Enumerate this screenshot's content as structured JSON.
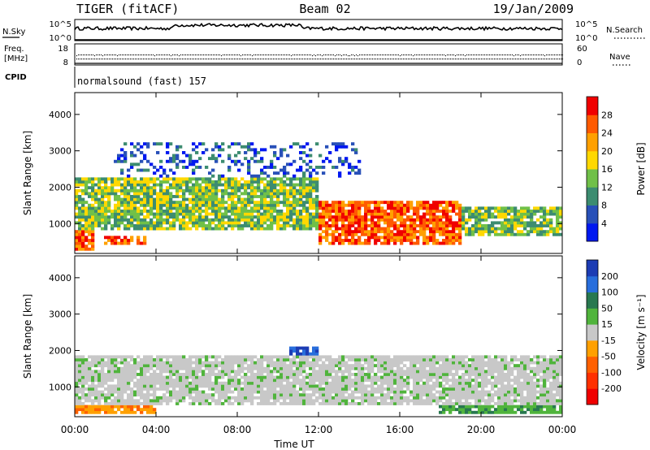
{
  "header": {
    "radar": "TIGER (fitACF)",
    "beam": "Beam 02",
    "date": "19/Jan/2009"
  },
  "top_panels": {
    "noise": {
      "left_label": "N.Sky",
      "left_ticks": [
        "10^5",
        "10^0"
      ],
      "right_label": "N.Search",
      "right_ticks": [
        "10^5",
        "10^0"
      ]
    },
    "freq": {
      "left_label_1": "Freq.",
      "left_label_2": "[MHz]",
      "left_ticks": [
        "18",
        "8"
      ],
      "right_label": "Nave",
      "right_ticks": [
        "60",
        "0"
      ]
    },
    "cpid": {
      "label": "CPID",
      "text": "normalsound (fast) 157"
    }
  },
  "chart_data": [
    {
      "type": "heatmap",
      "panel": "power",
      "xlabel": "Time UT",
      "ylabel": "Slant Range [km]",
      "x_ticks": [
        "00:00",
        "04:00",
        "08:00",
        "12:00",
        "16:00",
        "20:00",
        "00:00"
      ],
      "y_ticks": [
        1000,
        2000,
        3000,
        4000
      ],
      "xlim_hours": [
        0,
        24
      ],
      "ylim_km": [
        180,
        4600
      ],
      "colorbar_label": "Power [dB]",
      "colorbar_ticks": [
        4,
        8,
        12,
        16,
        20,
        24,
        28
      ],
      "colorbar_range": [
        0,
        32
      ],
      "colors": [
        "#0018f0",
        "#2850b8",
        "#3c8c70",
        "#70c048",
        "#ffd800",
        "#ffa000",
        "#ff5a00",
        "#f00000"
      ],
      "echo_regions": [
        {
          "t0": 0.0,
          "t1": 1.0,
          "r0": 300,
          "r1": 800,
          "level": "high"
        },
        {
          "t0": 1.5,
          "t1": 3.5,
          "r0": 400,
          "r1": 700,
          "level": "high"
        },
        {
          "t0": 12.0,
          "t1": 19.0,
          "r0": 400,
          "r1": 1600,
          "level": "high"
        },
        {
          "t0": 0.0,
          "t1": 12.0,
          "r0": 800,
          "r1": 2300,
          "level": "medium"
        },
        {
          "t0": 19.0,
          "t1": 24.0,
          "r0": 700,
          "r1": 1500,
          "level": "medium"
        },
        {
          "t0": 2.0,
          "t1": 14.0,
          "r0": 2300,
          "r1": 3200,
          "level": "low"
        }
      ]
    },
    {
      "type": "heatmap",
      "panel": "velocity",
      "xlabel": "Time UT",
      "ylabel": "Slant Range [km]",
      "x_ticks": [
        "00:00",
        "04:00",
        "08:00",
        "12:00",
        "16:00",
        "20:00",
        "00:00"
      ],
      "y_ticks": [
        1000,
        2000,
        3000,
        4000
      ],
      "xlim_hours": [
        0,
        24
      ],
      "ylim_km": [
        180,
        4600
      ],
      "colorbar_label": "Velocity [m s⁻¹]",
      "colorbar_ticks": [
        200,
        100,
        50,
        15,
        -15,
        -50,
        -100,
        -200
      ],
      "colors": [
        "#1c3cb4",
        "#286edc",
        "#287850",
        "#50b43c",
        "#c8c8c8",
        "#ffa000",
        "#ff6000",
        "#ff3000",
        "#f00000"
      ],
      "echo_regions": [
        {
          "t0": 0.0,
          "t1": 24.0,
          "r0": 500,
          "r1": 1900,
          "velocity": "ground scatter"
        },
        {
          "t0": 0.0,
          "t1": 4.0,
          "r0": 250,
          "r1": 600,
          "velocity": -50
        },
        {
          "t0": 10.8,
          "t1": 12.0,
          "r0": 1100,
          "r1": 1500,
          "velocity": -100
        },
        {
          "t0": 10.5,
          "t1": 12.0,
          "r0": 1500,
          "r1": 2100,
          "velocity": 200
        },
        {
          "t0": 18.0,
          "t1": 24.0,
          "r0": 250,
          "r1": 700,
          "velocity": 50
        }
      ]
    }
  ]
}
